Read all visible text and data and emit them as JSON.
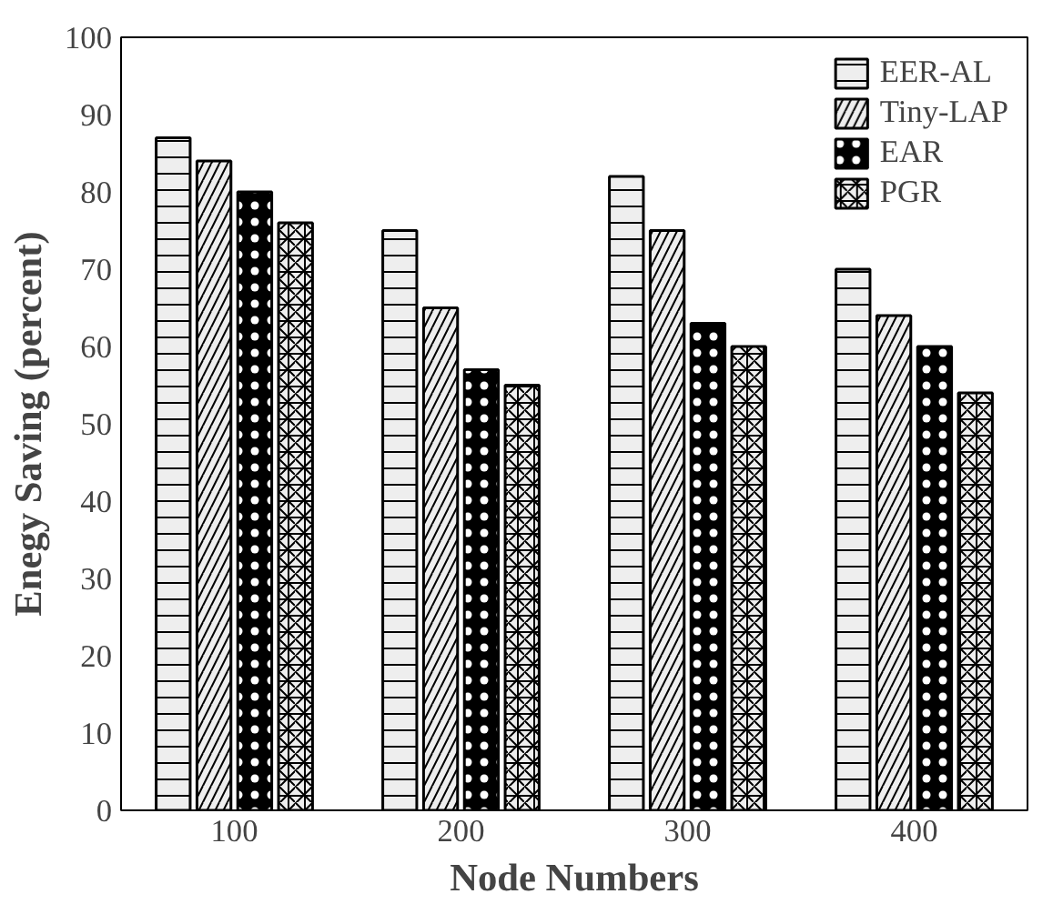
{
  "chart_data": {
    "type": "bar",
    "xlabel": "Node Numbers",
    "ylabel": "Enegy Saving (percent)",
    "categories": [
      "100",
      "200",
      "300",
      "400"
    ],
    "series": [
      {
        "name": "EER-AL",
        "color": "#eeeeee",
        "values": [
          87,
          75,
          82,
          70
        ]
      },
      {
        "name": "Tiny-LAP",
        "color": "#eeeeee",
        "values": [
          84,
          65,
          75,
          64
        ]
      },
      {
        "name": "EAR",
        "color": "#000000",
        "values": [
          80,
          57,
          63,
          60
        ]
      },
      {
        "name": "PGR",
        "color": "#eeeeee",
        "values": [
          76,
          55,
          60,
          54
        ]
      }
    ],
    "ylim": [
      0,
      100
    ],
    "yticks": [
      0,
      10,
      20,
      30,
      40,
      50,
      60,
      70,
      80,
      90,
      100
    ],
    "legend": "top right"
  }
}
